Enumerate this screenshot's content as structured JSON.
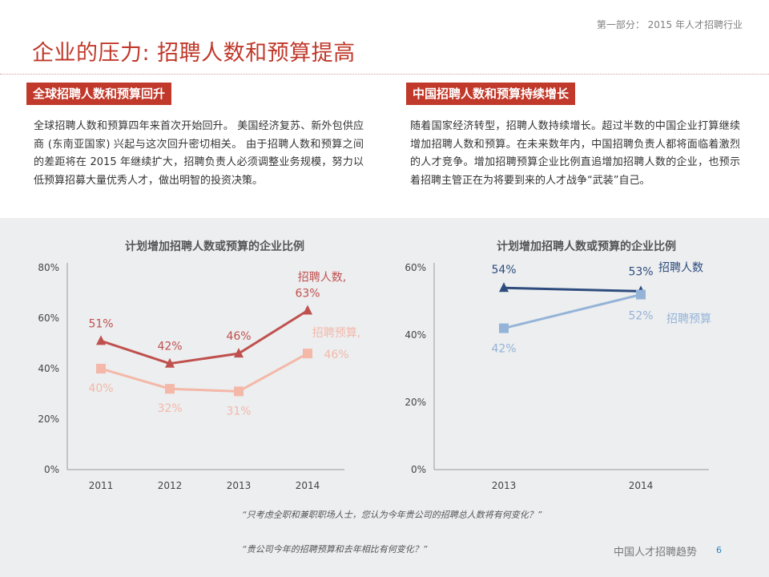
{
  "header": {
    "section_label": "第一部分： 2015 年人才招聘行业",
    "title": "企业的压力: 招聘人数和预算提高"
  },
  "left": {
    "heading": "全球招聘人数和预算回升",
    "body": "全球招聘人数和预算四年来首次开始回升。 美国经济复苏、新外包供应商 (东南亚国家) 兴起与这次回升密切相关。 由于招聘人数和预算之间的差距将在 2015 年继续扩大，招聘负责人必须调整业务规模，努力以低预算招募大量优秀人才，做出明智的投资决策。"
  },
  "right": {
    "heading": "中国招聘人数和预算持续增长",
    "body": "随着国家经济转型，招聘人数持续增长。超过半数的中国企业打算继续增加招聘人数和预算。在未来数年内，中国招聘负责人都将面临着激烈的人才竞争。增加招聘预算企业比例直追增加招聘人数的企业，也预示着招聘主管正在为将要到来的人才战争“武装”自己。"
  },
  "chart_data": [
    {
      "type": "line",
      "title": "计划增加招聘人数或预算的企业比例",
      "categories": [
        "2011",
        "2012",
        "2013",
        "2014"
      ],
      "ylim": [
        0,
        80
      ],
      "yticks": [
        "0%",
        "20%",
        "40%",
        "60%",
        "80%"
      ],
      "yunit": "%",
      "grid": false,
      "series": [
        {
          "name": "招聘人数,",
          "values": [
            51,
            42,
            46,
            63
          ],
          "value_labels": [
            "51%",
            "42%",
            "46%",
            "63%"
          ],
          "color": "#c0504d",
          "marker": "triangle"
        },
        {
          "name": "招聘预算,",
          "values": [
            40,
            32,
            31,
            46
          ],
          "value_labels": [
            "40%",
            "32%",
            "31%",
            "46%"
          ],
          "color": "#f4b8a8",
          "marker": "square"
        }
      ]
    },
    {
      "type": "line",
      "title": "计划增加招聘人数或预算的企业比例",
      "categories": [
        "2013",
        "2014"
      ],
      "ylim": [
        0,
        60
      ],
      "yticks": [
        "0%",
        "20%",
        "40%",
        "60%"
      ],
      "yunit": "%",
      "grid": false,
      "series": [
        {
          "name": "招聘人数",
          "values": [
            54,
            53
          ],
          "value_labels": [
            "54%",
            "53%"
          ],
          "color": "#2e4c7d",
          "marker": "triangle"
        },
        {
          "name": "招聘预算",
          "values": [
            42,
            52
          ],
          "value_labels": [
            "42%",
            "52%"
          ],
          "color": "#95b3d7",
          "marker": "square"
        }
      ]
    }
  ],
  "footnotes": [
    "“只考虑全职和兼职职场人士，您认为今年贵公司的招聘总人数将有何变化？”",
    "“贵公司今年的招聘预算和去年相比有何变化？”"
  ],
  "footer": {
    "label": "中国人才招聘趋势",
    "page_number": "6"
  }
}
